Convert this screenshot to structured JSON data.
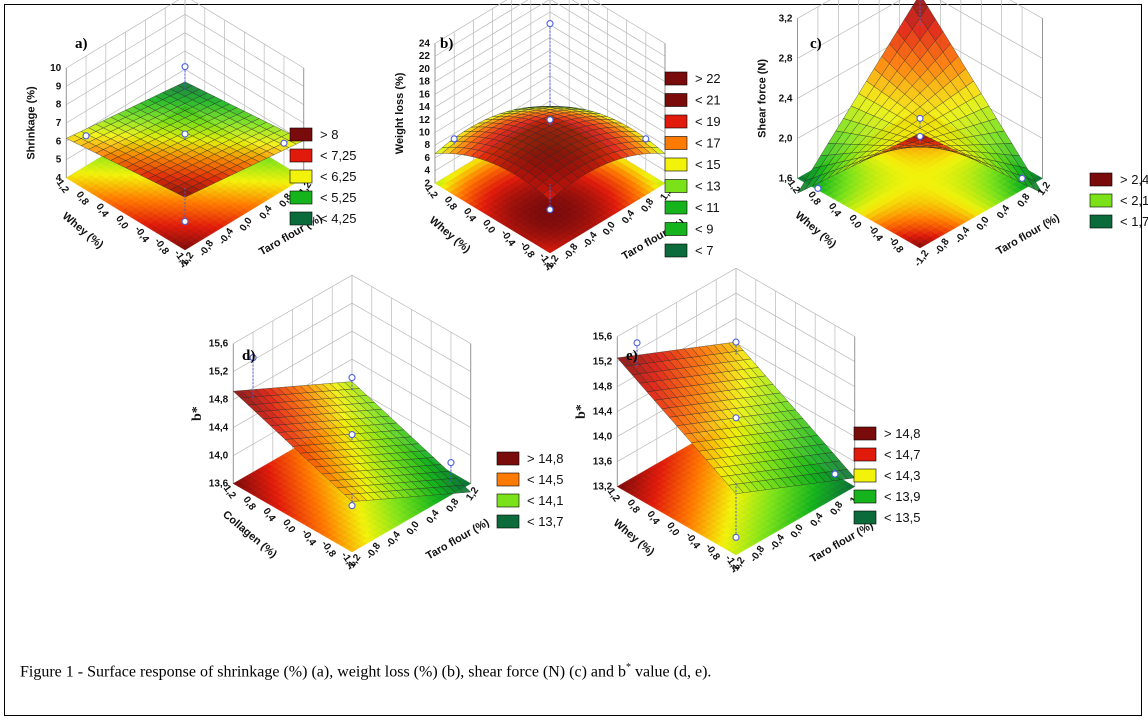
{
  "caption": {
    "prefix": "Figure 1 - Surface response of shrinkage (%) (a), weight loss (%) (b), shear force (N) (c) and b",
    "sup": "*",
    "suffix": " value (d, e)."
  },
  "colors": {
    "darkred": "#7a0b0b",
    "red": "#e01b0b",
    "orange": "#ff7a00",
    "yellow": "#f2f20a",
    "lightgreen": "#7be21a",
    "green": "#16b41c",
    "darkgreen": "#0c6b3a",
    "grid": "#b9b9b9",
    "point": "#4a5ee0"
  },
  "chart_data": [
    {
      "id": "a",
      "label": "a)",
      "type": "surface3d",
      "zlabel": "Shrinkage (%)",
      "xlabel": "Taro flour (%)",
      "ylabel": "Whey (%)",
      "ticks_x": [
        "-1,2",
        "-0,8",
        "-0,4",
        "0,0",
        "0,4",
        "0,8",
        "1,2"
      ],
      "ticks_y": [
        "-1,2",
        "-0,8",
        "-0,4",
        "0,0",
        "0,4",
        "0,8",
        "1,2"
      ],
      "ticks_z": [
        "4",
        "5",
        "6",
        "7",
        "8",
        "9",
        "10"
      ],
      "zlim": [
        4,
        10
      ],
      "coef": {
        "b0": 6.1,
        "bx": -0.35,
        "by": -0.3,
        "bxy": 0.0,
        "bxx": 0.0,
        "byy": 0.0
      },
      "legend": [
        ">  8",
        "< 7,25",
        "< 6,25",
        "< 5,25",
        "< 4,25"
      ],
      "legend_colors": [
        "darkred",
        "red",
        "yellow",
        "green",
        "darkgreen"
      ],
      "levels": [
        4.25,
        5.25,
        6.25,
        7.25,
        8
      ],
      "points": [
        [
          -1,
          -1,
          4.9
        ],
        [
          1,
          1,
          6.8
        ],
        [
          1,
          -1,
          5.9
        ],
        [
          -1,
          1,
          6.3
        ],
        [
          0,
          0,
          6.4
        ]
      ]
    },
    {
      "id": "b",
      "label": "b)",
      "type": "surface3d",
      "zlabel": "Weight loss (%)",
      "xlabel": "Taro flour (%)",
      "ylabel": "Whey (%)",
      "ticks_x": [
        "-1,2",
        "-0,8",
        "-0,4",
        "0,0",
        "0,4",
        "0,8",
        "1,2"
      ],
      "ticks_y": [
        "-1,2",
        "-0,8",
        "-0,4",
        "0,0",
        "0,4",
        "0,8",
        "1,2"
      ],
      "ticks_z": [
        "2",
        "4",
        "6",
        "8",
        "10",
        "12",
        "14",
        "16",
        "18",
        "20",
        "22",
        "24"
      ],
      "zlim": [
        2,
        24
      ],
      "coef": {
        "b0": 11,
        "bx": -1.5,
        "by": -1.5,
        "bxy": 0.0,
        "bxx": -1.5,
        "byy": -1.5
      },
      "legend": [
        "> 22",
        "< 21",
        "< 19",
        "< 17",
        "< 15",
        "< 13",
        "< 11",
        "< 9",
        "< 7"
      ],
      "legend_colors": [
        "darkred",
        "darkred",
        "red",
        "orange",
        "yellow",
        "lightgreen",
        "green",
        "green",
        "darkgreen"
      ],
      "levels": [
        7,
        9,
        11,
        13,
        15,
        17,
        19,
        21,
        22
      ],
      "points": [
        [
          1,
          1,
          18
        ],
        [
          1,
          -1,
          9
        ],
        [
          -1,
          1,
          9
        ],
        [
          -1,
          -1,
          7
        ],
        [
          0,
          0,
          12
        ]
      ]
    },
    {
      "id": "c",
      "label": "c)",
      "type": "surface3d",
      "zlabel": "Shear force (N)",
      "xlabel": "Taro flour (%)",
      "ylabel": "Whey (%)",
      "ticks_x": [
        "-1,2",
        "-0,8",
        "-0,4",
        "0,0",
        "0,4",
        "0,8",
        "1,2"
      ],
      "ticks_y": [
        "-0,8",
        "-0,4",
        "0,0",
        "0,4",
        "0,8",
        "1,2"
      ],
      "ticks_z": [
        "1,6",
        "2,0",
        "2,4",
        "2,8",
        "3,2"
      ],
      "zlim": [
        1.6,
        3.2
      ],
      "coef": {
        "b0": 2.1,
        "bx": 0.0,
        "by": 0.0,
        "bxy": 0.45,
        "bxx": 0.0,
        "byy": 0.0
      },
      "legend": [
        "> 2,4",
        "< 2,1",
        "< 1,7"
      ],
      "legend_colors": [
        "darkred",
        "lightgreen",
        "darkgreen"
      ],
      "levels": [
        1.7,
        2.1,
        2.4
      ],
      "points": [
        [
          1,
          1,
          3.3
        ],
        [
          1,
          -1,
          1.6
        ],
        [
          -1,
          1,
          1.5
        ],
        [
          -1,
          -1,
          2.6
        ],
        [
          0,
          0,
          2.2
        ]
      ]
    },
    {
      "id": "d",
      "label": "d)",
      "type": "surface3d",
      "zlabel": "b*",
      "xlabel": "Taro flour (%)",
      "ylabel": "Collagen (%)",
      "ticks_x": [
        "-1,2",
        "-0,8",
        "-0,4",
        "0,0",
        "0,4",
        "0,8",
        "1,2"
      ],
      "ticks_y": [
        "-1,2",
        "-0,8",
        "-0,4",
        "0,0",
        "0,4",
        "0,8",
        "1,2"
      ],
      "ticks_z": [
        "13,6",
        "14,0",
        "14,4",
        "14,8",
        "15,2",
        "15,6"
      ],
      "zlim": [
        13.6,
        15.6
      ],
      "coef": {
        "b0": 14.2,
        "bx": -0.35,
        "by": 0.25,
        "bxy": 0.0,
        "bxx": 0.0,
        "byy": 0.0
      },
      "legend": [
        "> 14,8",
        "< 14,5",
        "< 14,1",
        "< 13,7"
      ],
      "legend_colors": [
        "darkred",
        "orange",
        "lightgreen",
        "darkgreen"
      ],
      "levels": [
        13.7,
        14.1,
        14.5,
        14.8
      ],
      "points": [
        [
          -1,
          1,
          15.4
        ],
        [
          1,
          1,
          14.3
        ],
        [
          1,
          -1,
          13.9
        ],
        [
          -1,
          -1,
          14.1
        ],
        [
          0,
          0,
          14.3
        ]
      ]
    },
    {
      "id": "e",
      "label": "e)",
      "type": "surface3d",
      "zlabel": "b*",
      "xlabel": "Taro flour (%)",
      "ylabel": "Whey (%)",
      "ticks_x": [
        "-1,2",
        "-0,8",
        "-0,4",
        "0,0",
        "0,4",
        "0,8",
        "1,2"
      ],
      "ticks_y": [
        "-1,2",
        "-0,8",
        "-0,4",
        "0,0",
        "0,4",
        "0,8",
        "1,2"
      ],
      "ticks_z": [
        "13,2",
        "13,6",
        "14,0",
        "14,4",
        "14,8",
        "15,2",
        "15,6"
      ],
      "zlim": [
        13.2,
        15.6
      ],
      "coef": {
        "b0": 14.3,
        "bx": -0.35,
        "by": 0.45,
        "bxy": 0.0,
        "bxx": 0.0,
        "byy": 0.0
      },
      "legend": [
        "> 14,8",
        "< 14,7",
        "< 14,3",
        "< 13,9",
        "< 13,5"
      ],
      "legend_colors": [
        "darkred",
        "red",
        "yellow",
        "green",
        "darkgreen"
      ],
      "levels": [
        13.5,
        13.9,
        14.3,
        14.7,
        14.8
      ],
      "points": [
        [
          -1,
          1,
          15.5
        ],
        [
          1,
          -1,
          13.4
        ],
        [
          0,
          0,
          14.3
        ],
        [
          -1,
          -1,
          13.3
        ],
        [
          1,
          1,
          14.6
        ]
      ]
    }
  ]
}
